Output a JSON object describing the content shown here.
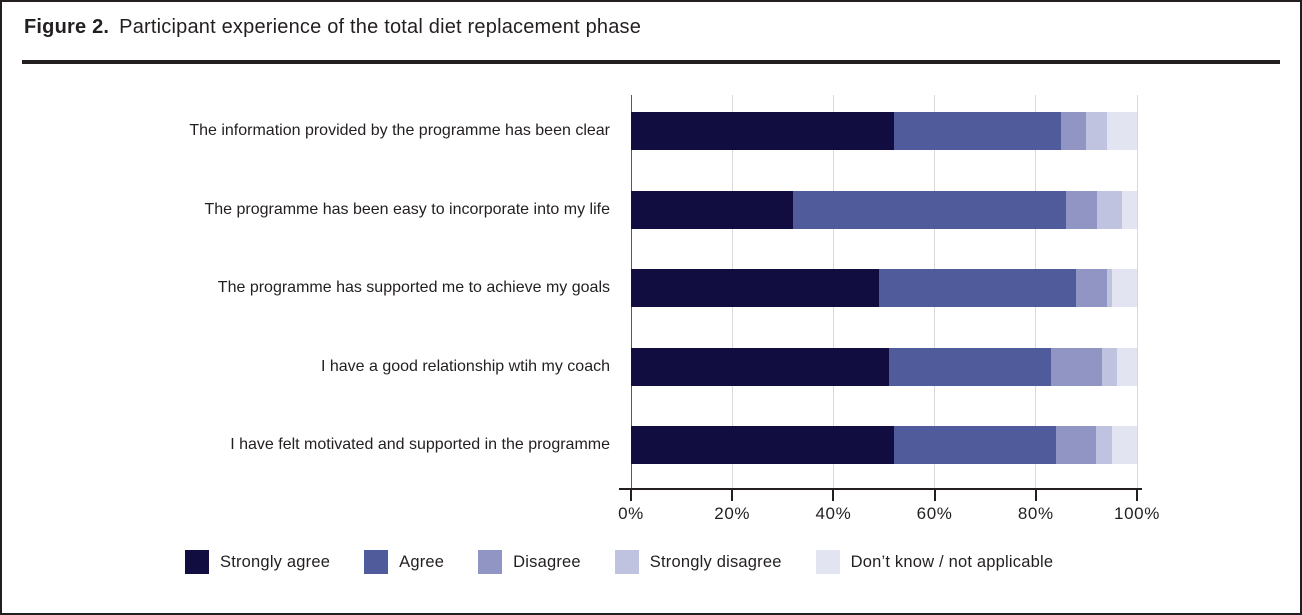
{
  "figure": {
    "label": "Figure 2.",
    "title": "Participant experience of the total diet replacement phase"
  },
  "chart_data": {
    "type": "bar",
    "orientation": "horizontal",
    "stacked": true,
    "unit": "%",
    "title": "Participant experience of the total diet replacement phase",
    "categories": [
      "The information provided by the programme has been clear",
      "The programme has been easy to incorporate into my life",
      "The programme has supported me to achieve my goals",
      "I have a good relationship wtih my coach",
      "I have felt motivated and supported in the programme"
    ],
    "series": [
      {
        "name": "Strongly agree",
        "color": "#120d40",
        "values": [
          52,
          32,
          49,
          51,
          52
        ]
      },
      {
        "name": "Agree",
        "color": "#505b9b",
        "values": [
          33,
          54,
          39,
          32,
          32
        ]
      },
      {
        "name": "Disagree",
        "color": "#9095c4",
        "values": [
          5,
          6,
          6,
          10,
          8
        ]
      },
      {
        "name": "Strongly disagree",
        "color": "#bfc3df",
        "values": [
          4,
          5,
          1,
          3,
          3
        ]
      },
      {
        "name": "Don’t know / not applicable",
        "color": "#e3e4f1",
        "values": [
          6,
          3,
          5,
          4,
          5
        ]
      }
    ],
    "x_axis": {
      "min": 0,
      "max": 100,
      "tick_values": [
        0,
        20,
        40,
        60,
        80,
        100
      ],
      "tick_labels": [
        "0%",
        "20%",
        "40%",
        "60%",
        "80%",
        "100%"
      ]
    },
    "grid": true,
    "legend_position": "bottom"
  },
  "colors": {
    "text": "#231f20",
    "gridline": "#d9d9d9",
    "axis": "#231f20",
    "zero_line": "#58595b"
  }
}
